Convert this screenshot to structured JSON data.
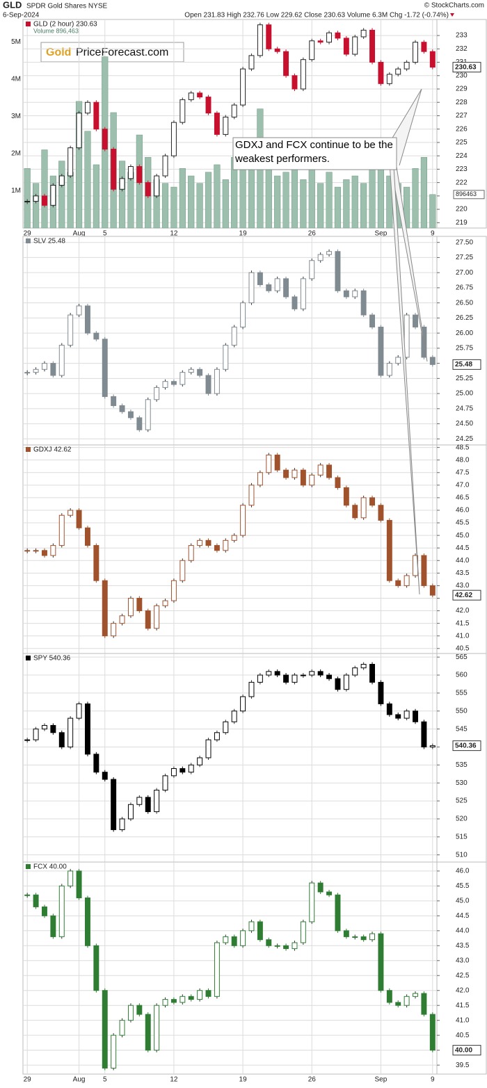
{
  "header": {
    "symbol": "GLD",
    "name": "SPDR Gold Shares NYSE",
    "date": "6-Sep-2024",
    "quote": "Open 231.83 High 232.76 Low 229.62 Close 230.63 Volume 6.3M Chg -1.72 (-0.74%)",
    "credit": "© StockCharts.com"
  },
  "logo": {
    "gold": "Gold",
    "site": "PriceForecast.com"
  },
  "annotation": "GDXJ and FCX continue to be the weakest performers.",
  "chart_data": [
    {
      "type": "candlestick",
      "title": "GLD (2 hour) 230.63",
      "color": "#c8102e",
      "price_label": "230.63",
      "categories": [
        "29",
        null,
        null,
        null,
        null,
        null,
        "Aug",
        null,
        null,
        "5",
        null,
        null,
        null,
        null,
        null,
        null,
        null,
        "12",
        null,
        null,
        null,
        null,
        null,
        null,
        null,
        "19",
        null,
        null,
        null,
        null,
        null,
        null,
        null,
        "26",
        null,
        null,
        null,
        null,
        null,
        null,
        null,
        "Sep",
        null,
        null,
        null,
        null,
        null,
        "9"
      ],
      "values": [
        220.6,
        221.0,
        220.3,
        221.8,
        222.5,
        224.6,
        227.2,
        228.0,
        226.0,
        224.5,
        221.5,
        222.3,
        223.2,
        222.0,
        221.0,
        222.5,
        224.0,
        226.5,
        228.2,
        228.7,
        228.4,
        227.2,
        225.6,
        226.9,
        227.8,
        230.5,
        231.5,
        233.8,
        232.0,
        231.8,
        230.0,
        229.0,
        231.2,
        232.6,
        232.5,
        233.2,
        232.8,
        231.6,
        232.9,
        233.4,
        231.0,
        229.4,
        230.1,
        230.5,
        231.0,
        232.5,
        231.8,
        230.63
      ],
      "ylim": [
        218.6,
        234.2
      ],
      "yticks": [
        219,
        220,
        221,
        222,
        223,
        224,
        225,
        226,
        227,
        228,
        229,
        230,
        231,
        232,
        233
      ],
      "volume": {
        "name": "Volume 896,463",
        "color": "#9dbfae",
        "last_label": "896463",
        "values": [
          1.6,
          1.2,
          2.1,
          1.4,
          1.8,
          1.5,
          3.4,
          2.6,
          1.7,
          4.6,
          3.1,
          1.8,
          1.5,
          2.5,
          1.9,
          1.3,
          1.2,
          1.1,
          1.6,
          1.4,
          1.2,
          1.5,
          1.7,
          1.3,
          1.9,
          1.6,
          2.2,
          3.2,
          1.8,
          1.4,
          1.5,
          2.4,
          1.3,
          1.6,
          1.2,
          1.5,
          1.1,
          1.3,
          1.4,
          1.2,
          1.8,
          1.7,
          1.4,
          1.2,
          1.1,
          1.6,
          1.9,
          0.9
        ],
        "ylim": [
          0,
          5.6
        ],
        "yticks": [
          {
            "value": 1,
            "label": "1M"
          },
          {
            "value": 2,
            "label": "2M"
          },
          {
            "value": 3,
            "label": "3M"
          },
          {
            "value": 4,
            "label": "4M"
          },
          {
            "value": 5,
            "label": "5M"
          }
        ]
      }
    },
    {
      "type": "candlestick",
      "title": "SLV 25.48",
      "color": "#7f8a91",
      "price_label": "25.48",
      "values": [
        25.35,
        25.4,
        25.5,
        25.3,
        25.8,
        26.3,
        26.45,
        26.0,
        25.9,
        24.95,
        24.8,
        24.7,
        24.6,
        24.4,
        24.9,
        25.1,
        25.2,
        25.15,
        25.35,
        25.4,
        25.3,
        25.0,
        25.4,
        25.8,
        26.1,
        26.5,
        27.0,
        26.8,
        26.7,
        26.9,
        26.6,
        26.4,
        26.9,
        27.2,
        27.3,
        27.35,
        26.7,
        26.6,
        26.7,
        26.3,
        26.1,
        25.3,
        25.5,
        25.6,
        26.3,
        26.1,
        25.6,
        25.48
      ],
      "ylim": [
        24.15,
        27.6
      ],
      "yticks": [
        24.25,
        {
          "value": 24.5,
          "label": "24.50"
        },
        24.75,
        {
          "value": 25,
          "label": "25.00"
        },
        25.25,
        {
          "value": 25.5,
          "label": "25.50"
        },
        25.75,
        {
          "value": 26,
          "label": "26.00"
        },
        26.25,
        {
          "value": 26.5,
          "label": "26.50"
        },
        26.75,
        {
          "value": 27,
          "label": "27.00"
        },
        27.25,
        {
          "value": 27.5,
          "label": "27.50"
        }
      ]
    },
    {
      "type": "candlestick",
      "title": "GDXJ 42.62",
      "color": "#a0522d",
      "price_label": "42.62",
      "values": [
        44.4,
        44.4,
        44.2,
        44.6,
        45.8,
        46.0,
        45.3,
        44.6,
        43.2,
        41.0,
        41.5,
        41.8,
        42.5,
        42.0,
        41.3,
        42.2,
        42.4,
        43.2,
        44.0,
        44.6,
        44.8,
        44.6,
        44.4,
        44.8,
        45.0,
        46.2,
        47.0,
        47.5,
        48.2,
        47.6,
        47.3,
        47.6,
        47.0,
        47.4,
        47.8,
        47.3,
        46.9,
        46.2,
        45.7,
        46.5,
        46.2,
        45.6,
        43.2,
        43.0,
        43.4,
        44.2,
        43.0,
        42.62
      ],
      "ylim": [
        40.3,
        48.6
      ],
      "yticks": [
        40.5,
        {
          "value": 41,
          "label": "41.0"
        },
        41.5,
        {
          "value": 42,
          "label": "42.0"
        },
        42.5,
        {
          "value": 43,
          "label": "43.0"
        },
        43.5,
        {
          "value": 44,
          "label": "44.0"
        },
        44.5,
        {
          "value": 45,
          "label": "45.0"
        },
        45.5,
        {
          "value": 46,
          "label": "46.0"
        },
        46.5,
        {
          "value": 47,
          "label": "47.0"
        },
        47.5,
        {
          "value": 48,
          "label": "48.0"
        },
        48.5
      ]
    },
    {
      "type": "candlestick",
      "title": "SPY 540.36",
      "color": "#000000",
      "price_label": "540.36",
      "values": [
        542,
        545,
        546,
        544,
        540,
        548,
        552,
        538,
        533,
        531,
        517,
        520,
        524,
        526,
        522,
        528,
        532,
        534,
        533,
        535,
        537,
        542,
        544,
        547,
        550,
        554,
        558,
        560,
        561,
        560,
        558,
        560,
        560,
        561,
        560,
        559,
        556,
        560,
        562,
        563,
        558,
        552,
        549,
        548,
        550,
        547,
        540,
        540.36
      ],
      "ylim": [
        508,
        566
      ],
      "yticks": [
        510,
        515,
        520,
        525,
        530,
        535,
        540,
        545,
        550,
        555,
        560,
        565
      ]
    },
    {
      "type": "candlestick",
      "title": "FCX 40.00",
      "color": "#2e7d32",
      "price_label": "40.00",
      "categories": [
        "29",
        null,
        null,
        null,
        null,
        null,
        "Aug",
        null,
        null,
        "5",
        null,
        null,
        null,
        null,
        null,
        null,
        null,
        "12",
        null,
        null,
        null,
        null,
        null,
        null,
        null,
        "19",
        null,
        null,
        null,
        null,
        null,
        null,
        null,
        "26",
        null,
        null,
        null,
        null,
        null,
        null,
        null,
        "Sep",
        null,
        null,
        null,
        null,
        null,
        "9"
      ],
      "values": [
        45.2,
        44.8,
        44.5,
        43.8,
        45.5,
        46.0,
        45.1,
        43.5,
        42.0,
        39.4,
        40.5,
        41.0,
        41.5,
        41.2,
        40.0,
        41.5,
        41.7,
        41.6,
        41.8,
        41.7,
        42.0,
        41.8,
        43.6,
        43.8,
        43.5,
        44.0,
        44.3,
        43.7,
        43.5,
        43.5,
        43.4,
        43.6,
        44.3,
        45.6,
        45.3,
        45.2,
        44.0,
        43.8,
        43.8,
        43.7,
        43.9,
        42.0,
        41.6,
        41.5,
        41.8,
        41.9,
        41.2,
        40.0
      ],
      "ylim": [
        39.2,
        46.3
      ],
      "yticks": [
        39.5,
        {
          "value": 40,
          "label": "40.0"
        },
        40.5,
        {
          "value": 41,
          "label": "41.0"
        },
        41.5,
        {
          "value": 42,
          "label": "42.0"
        },
        42.5,
        {
          "value": 43,
          "label": "43.0"
        },
        43.5,
        {
          "value": 44,
          "label": "44.0"
        },
        44.5,
        {
          "value": 45,
          "label": "45.0"
        },
        45.5,
        {
          "value": 46,
          "label": "46.0"
        }
      ]
    }
  ]
}
